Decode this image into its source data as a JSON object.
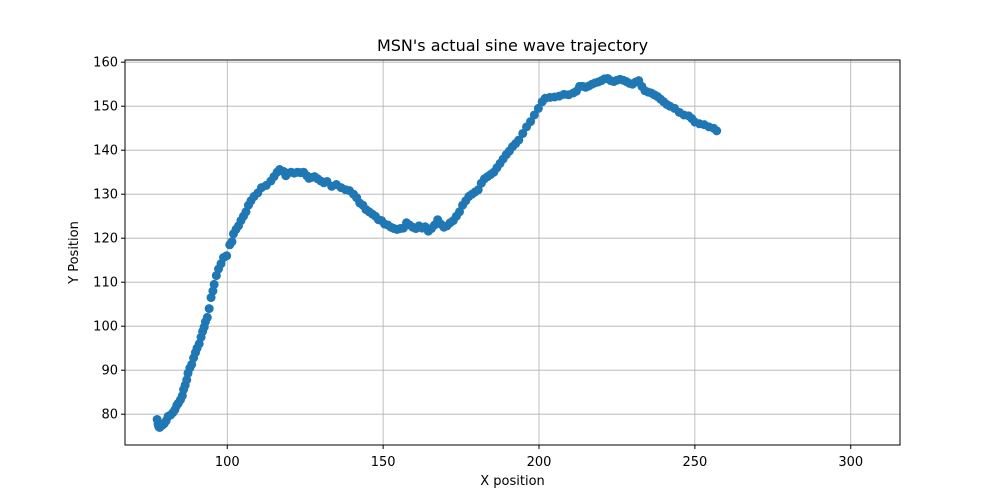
{
  "chart_data": {
    "type": "scatter",
    "title": "MSN's actual sine wave trajectory",
    "xlabel": "X position",
    "ylabel": "Y Position",
    "xlim": [
      67.2,
      315.8
    ],
    "ylim": [
      73.0,
      160.5
    ],
    "xticks": [
      100,
      150,
      200,
      250,
      300
    ],
    "yticks": [
      80,
      90,
      100,
      110,
      120,
      130,
      140,
      150,
      160
    ],
    "grid": true,
    "marker_color": "#1f77b4",
    "series": [
      {
        "points": [
          [
            77.5,
            78.8
          ],
          [
            77.8,
            77.8
          ],
          [
            78.0,
            77.2
          ],
          [
            78.3,
            77.0
          ],
          [
            78.7,
            77.3
          ],
          [
            79.2,
            77.5
          ],
          [
            79.8,
            77.9
          ],
          [
            80.4,
            78.5
          ],
          [
            81.0,
            79.5
          ],
          [
            81.8,
            79.8
          ],
          [
            82.5,
            80.3
          ],
          [
            83.2,
            81.0
          ],
          [
            83.8,
            82.0
          ],
          [
            84.3,
            82.5
          ],
          [
            85.0,
            83.3
          ],
          [
            85.6,
            84.2
          ],
          [
            86.0,
            85.6
          ],
          [
            86.5,
            86.6
          ],
          [
            87.0,
            87.8
          ],
          [
            87.4,
            89.3
          ],
          [
            88.0,
            90.5
          ],
          [
            88.6,
            91.3
          ],
          [
            89.2,
            92.8
          ],
          [
            89.8,
            94.0
          ],
          [
            90.3,
            95.0
          ],
          [
            91.0,
            96.0
          ],
          [
            91.6,
            97.5
          ],
          [
            92.1,
            98.8
          ],
          [
            92.6,
            99.8
          ],
          [
            93.0,
            101.0
          ],
          [
            93.6,
            102.0
          ],
          [
            94.2,
            104.0
          ],
          [
            94.8,
            106.5
          ],
          [
            95.4,
            108.0
          ],
          [
            95.8,
            109.5
          ],
          [
            96.5,
            111.5
          ],
          [
            97.2,
            113.0
          ],
          [
            98.0,
            114.2
          ],
          [
            98.8,
            115.6
          ],
          [
            99.8,
            116.0
          ],
          [
            100.8,
            118.5
          ],
          [
            101.5,
            119.2
          ],
          [
            102.0,
            121.0
          ],
          [
            102.8,
            122.0
          ],
          [
            103.6,
            122.8
          ],
          [
            104.4,
            124.0
          ],
          [
            105.2,
            125.0
          ],
          [
            106.0,
            126.0
          ],
          [
            106.8,
            127.5
          ],
          [
            107.6,
            128.5
          ],
          [
            108.6,
            129.5
          ],
          [
            109.8,
            130.3
          ],
          [
            111.0,
            131.5
          ],
          [
            112.5,
            132.0
          ],
          [
            114.0,
            133.0
          ],
          [
            115.0,
            134.0
          ],
          [
            116.0,
            135.0
          ],
          [
            116.8,
            135.6
          ],
          [
            118.0,
            135.2
          ],
          [
            118.8,
            134.2
          ],
          [
            119.5,
            134.8
          ],
          [
            120.5,
            135.0
          ],
          [
            121.5,
            134.8
          ],
          [
            122.5,
            135.0
          ],
          [
            123.5,
            134.9
          ],
          [
            124.5,
            135.0
          ],
          [
            125.5,
            134.2
          ],
          [
            126.2,
            133.6
          ],
          [
            127.0,
            133.8
          ],
          [
            128.0,
            134.0
          ],
          [
            129.0,
            133.5
          ],
          [
            130.0,
            133.0
          ],
          [
            131.0,
            132.6
          ],
          [
            132.0,
            132.9
          ],
          [
            133.5,
            131.8
          ],
          [
            135.0,
            132.2
          ],
          [
            136.5,
            131.5
          ],
          [
            138.0,
            131.0
          ],
          [
            139.2,
            130.8
          ],
          [
            140.5,
            130.0
          ],
          [
            141.5,
            129.2
          ],
          [
            142.5,
            128.0
          ],
          [
            143.5,
            127.5
          ],
          [
            144.5,
            126.5
          ],
          [
            145.5,
            126.0
          ],
          [
            146.5,
            125.5
          ],
          [
            147.5,
            125.0
          ],
          [
            148.5,
            124.2
          ],
          [
            149.5,
            124.0
          ],
          [
            150.5,
            123.2
          ],
          [
            151.5,
            123.0
          ],
          [
            152.5,
            122.5
          ],
          [
            153.5,
            122.2
          ],
          [
            154.5,
            122.0
          ],
          [
            155.5,
            122.2
          ],
          [
            156.5,
            122.3
          ],
          [
            157.5,
            123.5
          ],
          [
            158.5,
            123.0
          ],
          [
            159.5,
            122.5
          ],
          [
            160.5,
            122.2
          ],
          [
            161.5,
            122.8
          ],
          [
            162.5,
            122.3
          ],
          [
            163.5,
            122.6
          ],
          [
            164.5,
            121.6
          ],
          [
            165.5,
            122.2
          ],
          [
            166.5,
            123.0
          ],
          [
            167.5,
            124.2
          ],
          [
            168.5,
            123.2
          ],
          [
            169.5,
            122.5
          ],
          [
            170.5,
            122.8
          ],
          [
            171.5,
            123.5
          ],
          [
            172.5,
            124.0
          ],
          [
            173.5,
            125.0
          ],
          [
            174.5,
            126.0
          ],
          [
            175.5,
            127.5
          ],
          [
            176.5,
            128.5
          ],
          [
            177.5,
            129.5
          ],
          [
            178.5,
            130.0
          ],
          [
            179.5,
            130.5
          ],
          [
            180.5,
            131.0
          ],
          [
            181.5,
            132.5
          ],
          [
            182.5,
            133.5
          ],
          [
            183.5,
            134.0
          ],
          [
            184.5,
            134.5
          ],
          [
            185.5,
            135.0
          ],
          [
            186.5,
            136.0
          ],
          [
            187.5,
            137.0
          ],
          [
            188.5,
            138.0
          ],
          [
            189.5,
            139.0
          ],
          [
            190.5,
            139.8
          ],
          [
            191.5,
            140.8
          ],
          [
            192.5,
            141.5
          ],
          [
            193.5,
            142.3
          ],
          [
            194.8,
            143.8
          ],
          [
            196.0,
            145.3
          ],
          [
            197.3,
            146.5
          ],
          [
            198.5,
            148.0
          ],
          [
            199.8,
            149.5
          ],
          [
            201.0,
            151.0
          ],
          [
            202.0,
            151.8
          ],
          [
            203.5,
            152.0
          ],
          [
            205.0,
            152.1
          ],
          [
            206.5,
            152.3
          ],
          [
            208.0,
            152.7
          ],
          [
            209.5,
            152.6
          ],
          [
            211.0,
            153.0
          ],
          [
            212.0,
            153.4
          ],
          [
            213.0,
            154.5
          ],
          [
            214.0,
            154.5
          ],
          [
            215.0,
            154.3
          ],
          [
            216.0,
            154.6
          ],
          [
            217.0,
            155.0
          ],
          [
            218.0,
            155.3
          ],
          [
            219.0,
            155.5
          ],
          [
            220.0,
            155.8
          ],
          [
            221.0,
            156.2
          ],
          [
            222.0,
            156.3
          ],
          [
            223.0,
            155.8
          ],
          [
            224.0,
            155.6
          ],
          [
            225.0,
            155.9
          ],
          [
            226.0,
            156.1
          ],
          [
            227.0,
            155.9
          ],
          [
            228.0,
            155.6
          ],
          [
            229.0,
            155.2
          ],
          [
            230.0,
            155.0
          ],
          [
            231.0,
            155.5
          ],
          [
            232.0,
            155.8
          ],
          [
            233.0,
            154.5
          ],
          [
            234.0,
            153.5
          ],
          [
            235.0,
            153.2
          ],
          [
            236.0,
            153.0
          ],
          [
            237.0,
            152.6
          ],
          [
            238.0,
            152.2
          ],
          [
            239.0,
            151.6
          ],
          [
            240.0,
            151.0
          ],
          [
            241.0,
            150.4
          ],
          [
            242.0,
            150.0
          ],
          [
            243.5,
            149.5
          ],
          [
            245.0,
            148.6
          ],
          [
            246.5,
            148.0
          ],
          [
            248.0,
            147.8
          ],
          [
            249.0,
            147.2
          ],
          [
            250.0,
            146.4
          ],
          [
            251.5,
            146.0
          ],
          [
            253.0,
            145.8
          ],
          [
            254.5,
            145.3
          ],
          [
            256.0,
            145.0
          ],
          [
            257.0,
            144.4
          ]
        ]
      }
    ]
  }
}
